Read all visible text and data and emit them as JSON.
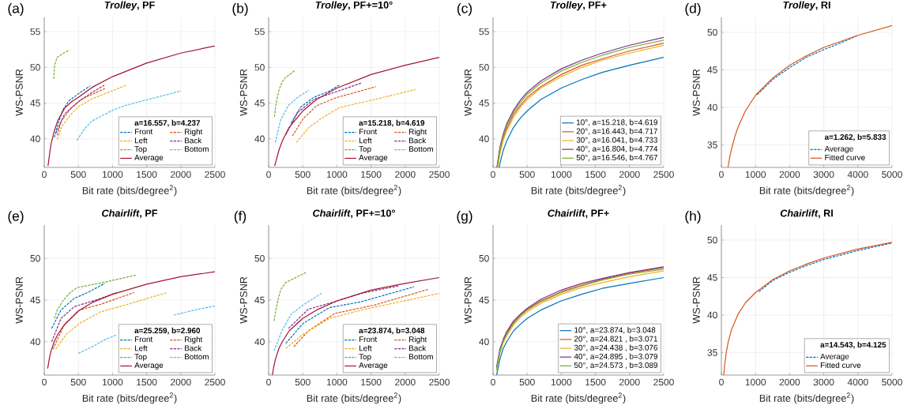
{
  "chart_data": [
    {
      "type": "line",
      "title": "*Trolley*, PF",
      "xlabel": "Bit rate (bits/degree$^{2}$)",
      "ylabel": "WS-PSNR",
      "annotations": [
        "(a)"
      ],
      "legend": "bottom right",
      "legend_title": "a=16.557, b=4.237",
      "grid": true,
      "xlim": [
        0,
        2500
      ],
      "ylim": [
        36,
        57
      ],
      "xticks": [
        0,
        500,
        1000,
        1500,
        2000,
        2500
      ],
      "yticks": [
        40,
        45,
        50,
        55
      ],
      "series": [
        {
          "name": "Front",
          "color": "#0072BD",
          "line_style": "dashed",
          "x": [
            148,
            200,
            270,
            360,
            500,
            670
          ],
          "values": [
            40.2,
            42.0,
            44.0,
            45.3,
            46.3,
            47.4
          ]
        },
        {
          "name": "Right",
          "color": "#D95319",
          "line_style": "dashed",
          "x": [
            190,
            250,
            400,
            560,
            900
          ],
          "values": [
            40.5,
            42.5,
            44.4,
            45.6,
            47.1
          ]
        },
        {
          "name": "Left",
          "color": "#EDB120",
          "line_style": "dashed",
          "x": [
            190,
            260,
            400,
            500,
            700,
            1200
          ],
          "values": [
            39.9,
            41.8,
            43.5,
            44.5,
            45.6,
            47.5
          ]
        },
        {
          "name": "Back",
          "color": "#7E2F8E",
          "line_style": "dashed",
          "x": [
            170,
            300,
            500,
            700,
            880
          ],
          "values": [
            40.8,
            43.5,
            45.2,
            46.5,
            47.5
          ]
        },
        {
          "name": "Top",
          "color": "#77AC30",
          "line_style": "dashed",
          "x": [
            140,
            150,
            187,
            284,
            369
          ],
          "values": [
            48.4,
            50.2,
            51.4,
            52.0,
            52.4
          ]
        },
        {
          "name": "Bottom",
          "color": "#4DBEEE",
          "line_style": "dashed",
          "x": [
            480,
            600,
            700,
            1000,
            1200,
            1600,
            2000
          ],
          "values": [
            39.8,
            41.5,
            42.5,
            44.0,
            44.7,
            45.7,
            46.7
          ]
        },
        {
          "name": "Average",
          "color": "#A2142F",
          "line_style": "solid",
          "x": [
            55,
            80,
            100,
            150,
            200,
            300,
            400,
            500,
            700,
            1000,
            1500,
            2000,
            2500
          ],
          "values": [
            36.2,
            38.0,
            39.3,
            41.2,
            42.6,
            44.3,
            45.2,
            45.8,
            47.2,
            48.7,
            50.6,
            52.0,
            53.0
          ]
        }
      ]
    },
    {
      "type": "line",
      "title": "*Trolley*, PF+=10°",
      "xlabel": "Bit rate (bits/degree$^{2}$)",
      "ylabel": "WS-PSNR",
      "annotations": [
        "(b)"
      ],
      "legend": "bottom right",
      "legend_title": "a=15.218, b=4.619",
      "grid": true,
      "xlim": [
        0,
        2500
      ],
      "ylim": [
        36,
        57
      ],
      "xticks": [
        0,
        500,
        1000,
        1500,
        2000,
        2500
      ],
      "yticks": [
        40,
        45,
        50,
        55
      ],
      "series": [
        {
          "name": "Front",
          "color": "#0072BD",
          "line_style": "dashed",
          "x": [
            330,
            465,
            659,
            891,
            1047
          ],
          "values": [
            42.2,
            44.4,
            45.8,
            46.7,
            47.6
          ]
        },
        {
          "name": "Right",
          "color": "#D95319",
          "line_style": "dashed",
          "x": [
            349,
            504,
            698,
            969,
            1570
          ],
          "values": [
            40.4,
            42.8,
            44.6,
            45.7,
            47.3
          ]
        },
        {
          "name": "Left",
          "color": "#EDB120",
          "line_style": "dashed",
          "x": [
            407,
            581,
            775,
            1047,
            1550,
            2151
          ],
          "values": [
            39.5,
            41.5,
            42.9,
            44.4,
            45.5,
            46.9
          ]
        },
        {
          "name": "Back",
          "color": "#7E2F8E",
          "line_style": "dashed",
          "x": [
            252,
            426,
            659,
            1357
          ],
          "values": [
            40.6,
            43.7,
            45.5,
            47.8
          ]
        },
        {
          "name": "Top",
          "color": "#77AC30",
          "line_style": "dashed",
          "x": [
            85,
            110,
            150,
            200,
            250,
            390
          ],
          "values": [
            43.1,
            45.0,
            46.8,
            48.0,
            48.6,
            49.6
          ]
        },
        {
          "name": "Bottom",
          "color": "#4DBEEE",
          "line_style": "dashed",
          "x": [
            97,
            174,
            291,
            426,
            589
          ],
          "values": [
            39.5,
            42.6,
            44.7,
            45.8,
            46.8
          ]
        },
        {
          "name": "Average",
          "color": "#A2142F",
          "line_style": "solid",
          "x": [
            88,
            120,
            150,
            200,
            300,
            500,
            700,
            1000,
            1500,
            2000,
            2500
          ],
          "values": [
            36.2,
            37.3,
            38.4,
            39.7,
            41.6,
            43.9,
            45.5,
            47.1,
            49.0,
            50.3,
            51.4
          ]
        }
      ]
    },
    {
      "type": "line",
      "title": "*Trolley*, PF+",
      "xlabel": "Bit rate (bits/degree$^{2}$)",
      "ylabel": "WS-PSNR",
      "annotations": [
        "(c)"
      ],
      "legend": "bottom right",
      "grid": true,
      "xlim": [
        0,
        2500
      ],
      "ylim": [
        36,
        57
      ],
      "xticks": [
        0,
        500,
        1000,
        1500,
        2000,
        2500
      ],
      "yticks": [
        40,
        45,
        50,
        55
      ],
      "series": [
        {
          "name": "10°, a=15.218, b=4.619",
          "color": "#0072BD",
          "line_style": "solid",
          "x": [
            90,
            100,
            150,
            200,
            300,
            400,
            500,
            700,
            1000,
            1300,
            1600,
            2000,
            2500
          ],
          "values": [
            36.0,
            36.5,
            38.4,
            39.7,
            41.6,
            42.9,
            43.9,
            45.5,
            47.1,
            48.3,
            49.3,
            50.3,
            51.4
          ]
        },
        {
          "name": "20°, a=16.443, b=4.717",
          "color": "#D95319",
          "line_style": "solid",
          "x": [
            63,
            100,
            150,
            200,
            300,
            400,
            500,
            700,
            1000,
            1300,
            1600,
            2000,
            2500
          ],
          "values": [
            36.0,
            38.2,
            40.1,
            41.4,
            43.4,
            44.7,
            45.8,
            47.3,
            49.0,
            50.3,
            51.2,
            52.3,
            53.4
          ]
        },
        {
          "name": "30°, a=16.041, b=4.733",
          "color": "#EDB120",
          "line_style": "solid",
          "x": [
            68,
            100,
            150,
            200,
            300,
            400,
            500,
            700,
            1000,
            1300,
            1600,
            2000,
            2500
          ],
          "values": [
            36.0,
            37.8,
            39.8,
            41.1,
            43.0,
            44.4,
            45.5,
            47.1,
            48.7,
            50.0,
            51.0,
            52.0,
            53.1
          ]
        },
        {
          "name": "40°, a=16.804, b=4.774",
          "color": "#7E2F8E",
          "line_style": "solid",
          "x": [
            56,
            100,
            150,
            200,
            300,
            400,
            500,
            700,
            1000,
            1300,
            1600,
            2000,
            2500
          ],
          "values": [
            36.0,
            38.8,
            40.7,
            42.1,
            44.0,
            45.4,
            46.5,
            48.1,
            49.8,
            51.0,
            52.0,
            53.1,
            54.2
          ]
        },
        {
          "name": "50°, a=16.546, b=4.767",
          "color": "#77AC30",
          "line_style": "solid",
          "x": [
            59,
            100,
            150,
            200,
            300,
            400,
            500,
            700,
            1000,
            1300,
            1600,
            2000,
            2500
          ],
          "values": [
            36.0,
            38.5,
            40.4,
            41.8,
            43.7,
            45.1,
            46.2,
            47.8,
            49.5,
            50.7,
            51.7,
            52.8,
            53.8
          ]
        }
      ]
    },
    {
      "type": "line",
      "title": "*Trolley*, RI",
      "xlabel": "Bit rate (bits/degree$^{2}$)",
      "ylabel": "WS-PSNR",
      "annotations": [
        "(d)"
      ],
      "legend": "bottom right",
      "legend_title": "a=1.262, b=5.833",
      "grid": true,
      "xlim": [
        0,
        5000
      ],
      "ylim": [
        32,
        52
      ],
      "xticks": [
        0,
        1000,
        2000,
        3000,
        4000,
        5000
      ],
      "yticks": [
        35,
        40,
        45,
        50
      ],
      "series": [
        {
          "name": "Average",
          "color": "#0072BD",
          "line_style": "dashed",
          "x": [
            1050,
            1500,
            2000,
            2500,
            3000,
            3500,
            4000
          ],
          "values": [
            41.7,
            43.7,
            45.3,
            46.7,
            47.7,
            48.6,
            49.6
          ]
        },
        {
          "name": "Fitted curve",
          "color": "#D95319",
          "line_style": "solid",
          "x": [
            194,
            250,
            300,
            400,
            500,
            700,
            1000,
            1500,
            2000,
            2500,
            3000,
            4000,
            5000
          ],
          "values": [
            32.0,
            33.5,
            34.5,
            36.2,
            37.5,
            39.5,
            41.6,
            43.9,
            45.6,
            46.9,
            48.0,
            49.6,
            50.9
          ]
        }
      ]
    },
    {
      "type": "line",
      "title": "*Chairlift*, PF",
      "xlabel": "Bit rate (bits/degree$^{2}$)",
      "ylabel": "WS-PSNR",
      "annotations": [
        "(e)"
      ],
      "legend": "bottom right",
      "legend_title": "a=25.259, b=2.960",
      "grid": true,
      "xlim": [
        0,
        2500
      ],
      "ylim": [
        36,
        54
      ],
      "xticks": [
        0,
        500,
        1000,
        1500,
        2000,
        2500
      ],
      "yticks": [
        40,
        45,
        50
      ],
      "series": [
        {
          "name": "Front",
          "color": "#0072BD",
          "line_style": "dashed",
          "x": [
            109,
            245,
            439,
            634,
            886
          ],
          "values": [
            41.6,
            43.8,
            45.2,
            45.9,
            47.0
          ]
        },
        {
          "name": "Right",
          "color": "#D95319",
          "line_style": "dashed",
          "x": [
            128,
            284,
            517,
            828,
            1314
          ],
          "values": [
            39.1,
            41.9,
            43.8,
            44.5,
            45.9
          ]
        },
        {
          "name": "Left",
          "color": "#EDB120",
          "line_style": "dashed",
          "x": [
            167,
            323,
            517,
            828,
            1100,
            1800
          ],
          "values": [
            39.1,
            40.9,
            42.2,
            43.6,
            44.2,
            45.9
          ]
        },
        {
          "name": "Back",
          "color": "#7E2F8E",
          "line_style": "dashed",
          "x": [
            109,
            245,
            439,
            828,
            1061
          ],
          "values": [
            40.0,
            42.8,
            44.2,
            45.2,
            45.9
          ]
        },
        {
          "name": "Top",
          "color": "#77AC30",
          "line_style": "dashed",
          "x": [
            150,
            190,
            280,
            380,
            480,
            800,
            1350
          ],
          "values": [
            42.8,
            43.8,
            45.0,
            45.9,
            46.5,
            47.0,
            48.0
          ]
        },
        {
          "name": "Bottom",
          "color": "#4DBEEE",
          "line_style": "dashed",
          "x": [
            500,
            700,
            900,
            1050,
            1500,
            1900,
            2200,
            2500
          ],
          "values": [
            38.6,
            39.4,
            40.3,
            40.8,
            null,
            43.2,
            43.8,
            44.3
          ]
        },
        {
          "name": "Average",
          "color": "#A2142F",
          "line_style": "solid",
          "x": [
            50,
            75,
            100,
            150,
            200,
            300,
            500,
            700,
            1000,
            1500,
            2000,
            2500
          ],
          "values": [
            36.8,
            38.0,
            38.9,
            40.1,
            40.9,
            42.1,
            43.7,
            44.7,
            45.7,
            46.9,
            47.8,
            48.4
          ]
        }
      ]
    },
    {
      "type": "line",
      "title": "*Chairlift*, PF+=10°",
      "xlabel": "Bit rate (bits/degree$^{2}$)",
      "ylabel": "WS-PSNR",
      "annotations": [
        "(f)"
      ],
      "legend": "bottom right",
      "legend_title": "a=23.874, b=3.048",
      "grid": true,
      "xlim": [
        0,
        2500
      ],
      "ylim": [
        36,
        54
      ],
      "xticks": [
        0,
        500,
        1000,
        1500,
        2000,
        2500
      ],
      "yticks": [
        40,
        45,
        50
      ],
      "series": [
        {
          "name": "Front",
          "color": "#0072BD",
          "line_style": "dashed",
          "x": [
            252,
            504,
            891,
            1357,
            2132
          ],
          "values": [
            39.8,
            42.2,
            44.1,
            44.8,
            46.6
          ]
        },
        {
          "name": "Right",
          "color": "#D95319",
          "line_style": "dashed",
          "x": [
            368,
            581,
            969,
            1550,
            2345
          ],
          "values": [
            39.4,
            41.3,
            43.4,
            44.4,
            46.3
          ]
        },
        {
          "name": "Left",
          "color": "#EDB120",
          "line_style": "dashed",
          "x": [
            252,
            504,
            891,
            1357,
            2500
          ],
          "values": [
            39.2,
            40.9,
            42.8,
            43.8,
            45.8
          ]
        },
        {
          "name": "Back",
          "color": "#7E2F8E",
          "line_style": "dashed",
          "x": [
            291,
            581,
            969,
            1357,
            1899
          ],
          "values": [
            41.6,
            43.9,
            44.8,
            45.8,
            46.7
          ]
        },
        {
          "name": "Top",
          "color": "#77AC30",
          "line_style": "dashed",
          "x": [
            78,
            100,
            135,
            180,
            250,
            350,
            545
          ],
          "values": [
            42.5,
            43.5,
            45.0,
            46.3,
            47.1,
            47.5,
            48.3
          ]
        },
        {
          "name": "Bottom",
          "color": "#4DBEEE",
          "line_style": "dashed",
          "x": [
            78,
            194,
            329,
            504,
            775
          ],
          "values": [
            38.9,
            41.3,
            43.3,
            44.4,
            45.8
          ]
        },
        {
          "name": "Average",
          "color": "#A2142F",
          "line_style": "solid",
          "x": [
            54,
            75,
            100,
            150,
            200,
            300,
            500,
            700,
            1000,
            1500,
            2000,
            2500
          ],
          "values": [
            36.0,
            37.0,
            37.9,
            39.2,
            40.0,
            41.3,
            42.8,
            43.8,
            44.9,
            46.2,
            47.0,
            47.7
          ]
        }
      ]
    },
    {
      "type": "line",
      "title": "*Chairlift*, PF+",
      "xlabel": "Bit rate (bits/degree$^{2}$)",
      "ylabel": "WS-PSNR",
      "annotations": [
        "(g)"
      ],
      "legend": "bottom right",
      "grid": true,
      "xlim": [
        0,
        2500
      ],
      "ylim": [
        36,
        54
      ],
      "xticks": [
        0,
        500,
        1000,
        1500,
        2000,
        2500
      ],
      "yticks": [
        40,
        45,
        50
      ],
      "series": [
        {
          "name": "10°, a=23.874, b=3.048",
          "color": "#0072BD",
          "line_style": "solid",
          "x": [
            53,
            100,
            150,
            200,
            300,
            400,
            500,
            700,
            1000,
            1300,
            1600,
            2000,
            2500
          ],
          "values": [
            36.0,
            37.9,
            39.2,
            40.0,
            41.3,
            42.1,
            42.8,
            43.8,
            44.9,
            45.7,
            46.4,
            47.0,
            47.7
          ]
        },
        {
          "name": "20°, a=24.821 , b=3.071",
          "color": "#D95319",
          "line_style": "solid",
          "x": [
            150,
            200,
            300,
            400,
            500,
            700,
            1000,
            1300,
            1600,
            2000,
            2500
          ],
          "values": [
            40.2,
            41.1,
            42.3,
            43.2,
            43.9,
            44.9,
            46.0,
            46.8,
            47.5,
            48.2,
            48.9
          ]
        },
        {
          "name": "30°, a=24.438 , b=3.076",
          "color": "#EDB120",
          "line_style": "solid",
          "x": [
            50,
            100,
            150,
            200,
            300,
            400,
            500,
            700,
            1000,
            1300,
            1600,
            2000,
            2500
          ],
          "values": [
            36.5,
            38.6,
            39.9,
            40.7,
            42.0,
            42.9,
            43.6,
            44.6,
            45.7,
            46.5,
            47.1,
            47.8,
            48.5
          ]
        },
        {
          "name": "40°, a=24.895 , b=3.079",
          "color": "#7E2F8E",
          "line_style": "solid",
          "x": [
            50,
            100,
            150,
            200,
            300,
            400,
            500,
            700,
            1000,
            1300,
            1600,
            2000,
            2500
          ],
          "values": [
            36.9,
            39.1,
            40.3,
            41.2,
            42.5,
            43.3,
            44.0,
            45.1,
            46.2,
            47.0,
            47.6,
            48.3,
            49.0
          ]
        },
        {
          "name": "50°, a=24.573 , b=3.089",
          "color": "#77AC30",
          "line_style": "solid",
          "x": [
            50,
            100,
            150,
            200,
            300,
            400,
            500,
            700,
            1000,
            1300,
            1600,
            2000,
            2500
          ],
          "values": [
            36.7,
            38.8,
            40.1,
            40.9,
            42.2,
            43.1,
            43.8,
            44.8,
            45.9,
            46.7,
            47.4,
            48.1,
            48.7
          ]
        }
      ]
    },
    {
      "type": "line",
      "title": "*Chairlift*, RI",
      "xlabel": "Bit rate (bits/degree$^{2}$)",
      "ylabel": "WS-PSNR",
      "annotations": [
        "(h)"
      ],
      "legend": "bottom right",
      "legend_title": "a=14.543, b=4.125",
      "grid": true,
      "xlim": [
        0,
        5000
      ],
      "ylim": [
        32,
        52
      ],
      "xticks": [
        0,
        1000,
        2000,
        3000,
        4000,
        5000
      ],
      "yticks": [
        35,
        40,
        45,
        50
      ],
      "series": [
        {
          "name": "Average",
          "color": "#0072BD",
          "line_style": "dashed",
          "x": [
            1100,
            1500,
            2000,
            2500,
            3000,
            4000,
            5000
          ],
          "values": [
            43.1,
            44.6,
            45.7,
            46.6,
            47.4,
            48.6,
            49.6
          ]
        },
        {
          "name": "Fitted curve",
          "color": "#D95319",
          "line_style": "solid",
          "x": [
            69,
            100,
            150,
            200,
            300,
            500,
            700,
            1000,
            1500,
            2000,
            2500,
            3000,
            4000,
            5000
          ],
          "values": [
            32.0,
            33.5,
            35.2,
            36.4,
            38.1,
            40.2,
            41.6,
            43.0,
            44.7,
            45.9,
            46.8,
            47.6,
            48.8,
            49.7
          ]
        }
      ]
    }
  ]
}
